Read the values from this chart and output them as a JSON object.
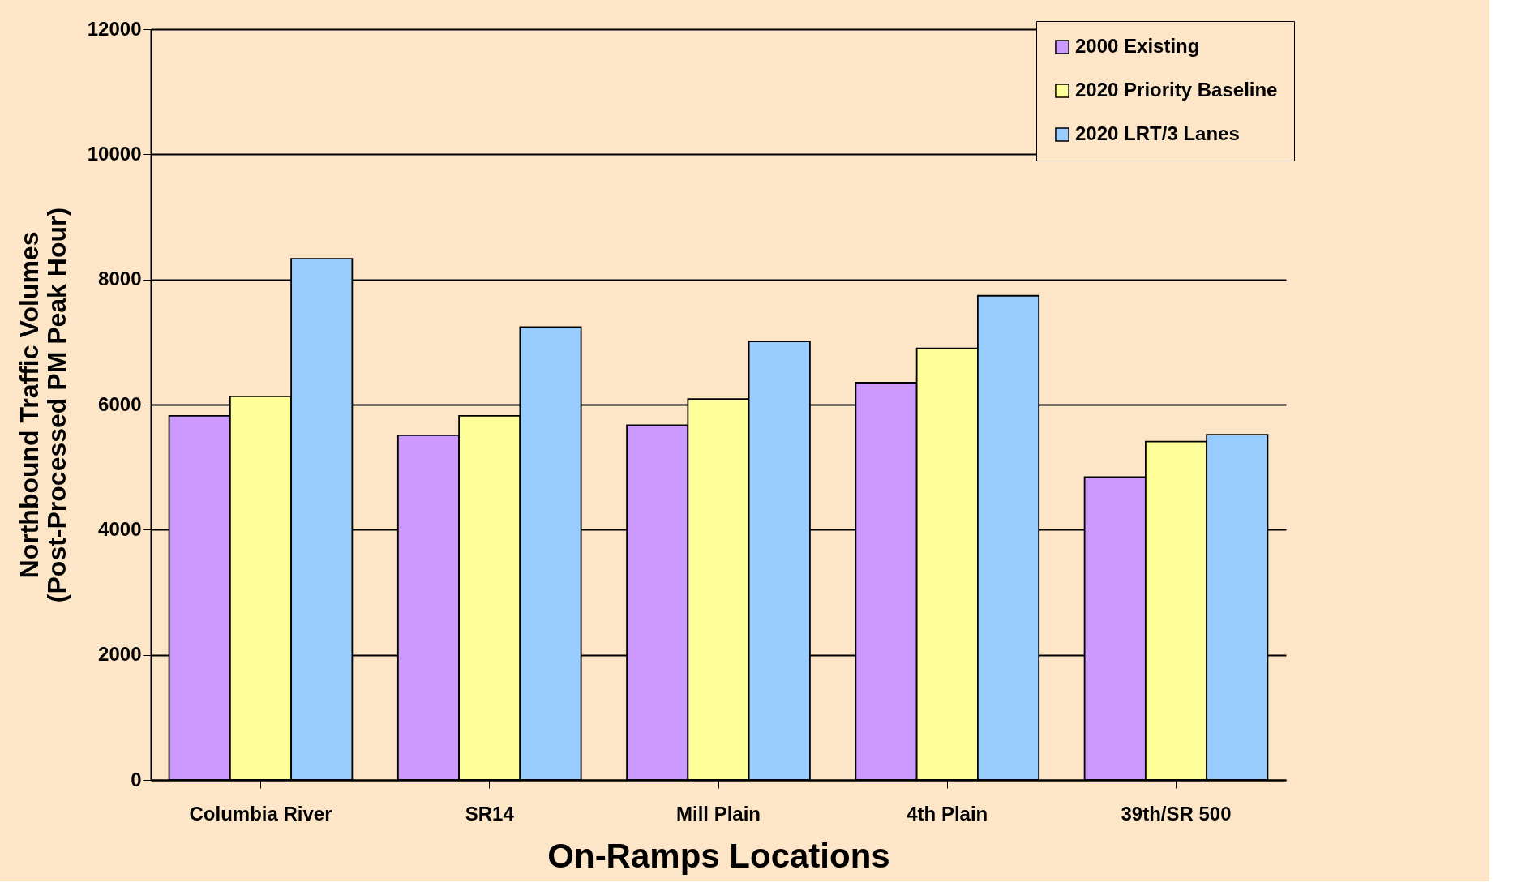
{
  "chart_data": {
    "type": "bar",
    "xlabel": "On-Ramps Locations",
    "ylabel": "Northbound Traffic Volumes\n(Post-Processed PM Peak Hour)",
    "categories": [
      "Columbia River",
      "SR14",
      "Mill Plain",
      "4th Plain",
      "39th/SR 500"
    ],
    "series": [
      {
        "name": "2000 Existing",
        "color": "#cc99ff",
        "values": [
          5820,
          5510,
          5670,
          6350,
          4840
        ]
      },
      {
        "name": "2020 Priority Baseline",
        "color": "#ffff99",
        "values": [
          6130,
          5820,
          6090,
          6900,
          5410
        ]
      },
      {
        "name": "2020 LRT/3 Lanes",
        "color": "#99ccff",
        "values": [
          8330,
          7240,
          7010,
          7740,
          5520
        ]
      }
    ],
    "ylim": [
      0,
      12000
    ],
    "yticks": [
      0,
      2000,
      4000,
      6000,
      8000,
      10000,
      12000
    ],
    "grid": "y",
    "legend": "top right"
  }
}
